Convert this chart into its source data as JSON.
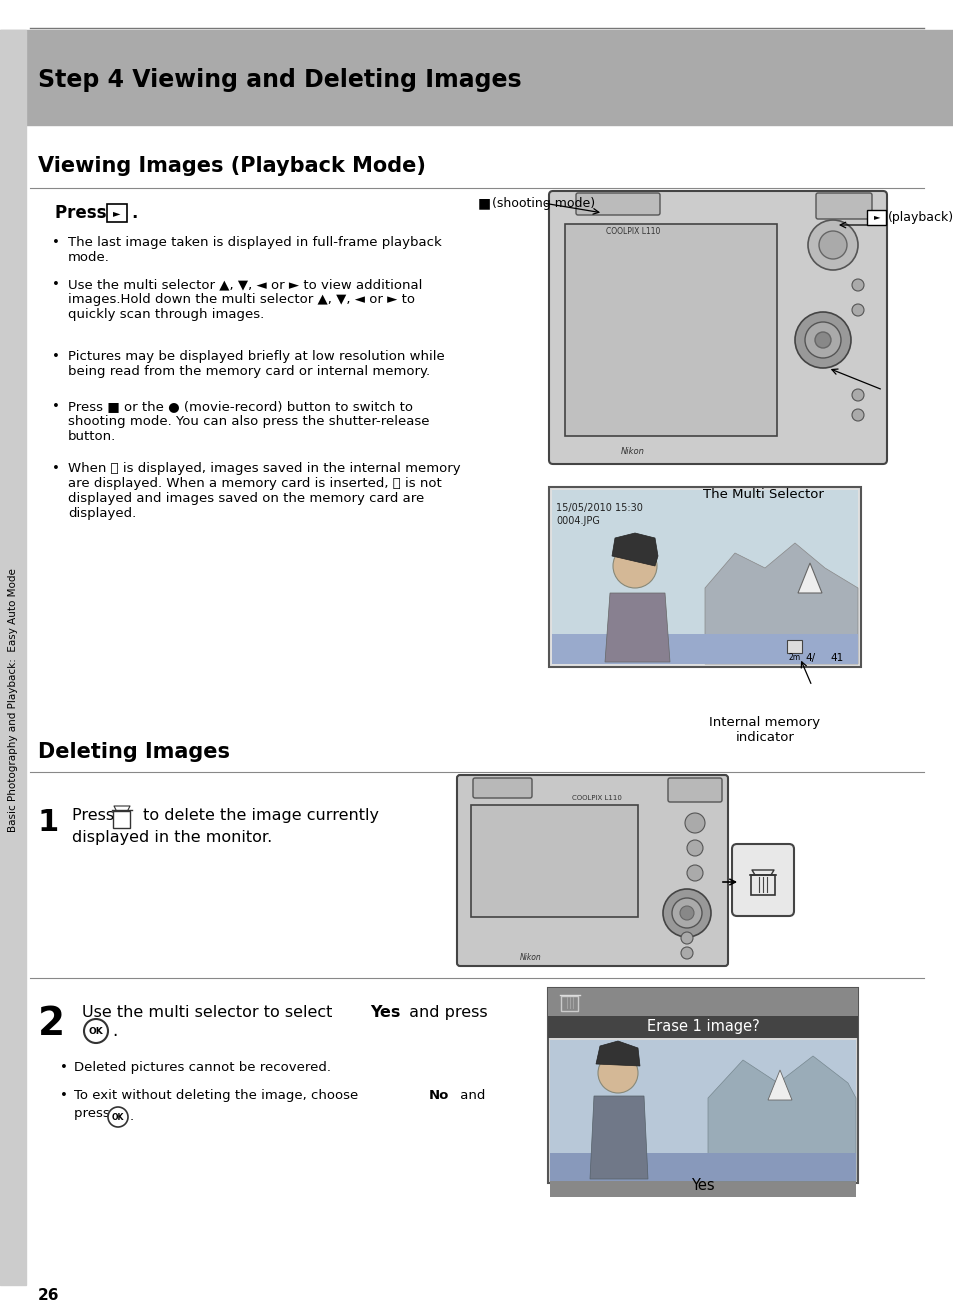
{
  "page_bg": "#ffffff",
  "header_bg": "#aaaaaa",
  "header_text": "Step 4 Viewing and Deleting Images",
  "section1_title": "Viewing Images (Playback Mode)",
  "section2_title": "Deleting Images",
  "sidebar_text": "Basic Photography and Playback:  Easy Auto Mode",
  "page_num": "26",
  "erase_label": "Erase 1 image?",
  "yes_label": "Yes",
  "no_label": "No",
  "date_text": "15/05/2010 15:30",
  "file_text": "0004.JPG",
  "coolpix_text": "COOLPIX L110",
  "nikon_text": "Nikon",
  "multi_selector_caption": "The Multi Selector",
  "internal_memory_caption": "Internal memory\nindicator",
  "shooting_mode_caption": "(shooting mode)",
  "playback_caption": "(playback)"
}
